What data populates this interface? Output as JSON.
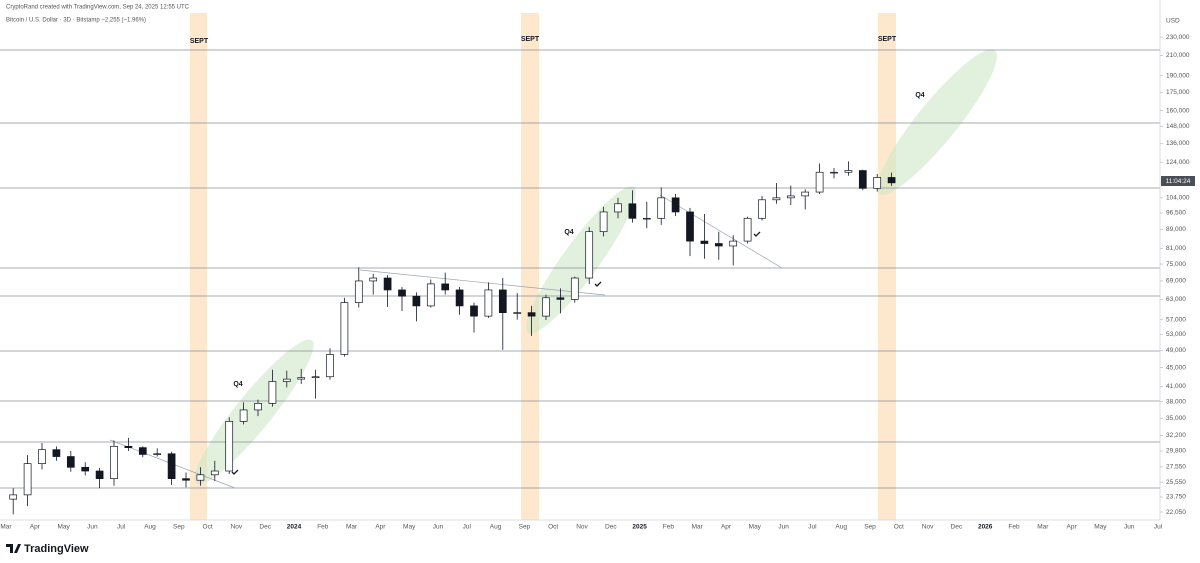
{
  "header": {
    "credit": "CryptoRand created with TradingView.com, Sep 24, 2025 12:55 UTC",
    "symbol": "Bitcoin / U.S. Dollar · 3D · Bitstamp  −2,255 (−1.96%)"
  },
  "footer": {
    "brand": "TradingView"
  },
  "annotations": {
    "sept": [
      "SEPT",
      "SEPT",
      "SEPT"
    ],
    "q4": [
      "Q4",
      "Q4",
      "Q4"
    ]
  },
  "chart_data": {
    "type": "candlestick",
    "currency": "USD",
    "countdown": "11:04:24",
    "log_scale": true,
    "up_color": "#ffffff",
    "down_color": "#131722",
    "outline_color": "#131722",
    "categories": [
      "Mar",
      null,
      "Apr",
      null,
      "May",
      null,
      "Jun",
      null,
      "Jul",
      null,
      "Aug",
      null,
      "Sep",
      null,
      "Oct",
      null,
      "Nov",
      null,
      "Dec",
      null,
      "2024",
      null,
      "Feb",
      null,
      "Mar",
      null,
      "Apr",
      null,
      "May",
      null,
      "Jun",
      null,
      "Jul",
      null,
      "Aug",
      null,
      "Sep",
      null,
      "Oct",
      null,
      "Nov",
      null,
      "Dec",
      null,
      "2025",
      null,
      "Feb",
      null,
      "Mar",
      null,
      "Apr",
      null,
      "May",
      null,
      "Jun",
      null,
      "Jul",
      null,
      "Aug",
      null,
      "Sep",
      null,
      "Oct",
      null,
      "Nov",
      null,
      "Dec",
      null,
      "2026",
      null,
      "Feb",
      null,
      "Mar",
      null,
      "Apr",
      null,
      "May",
      null,
      "Jun",
      null,
      "Jul",
      null
    ],
    "open": [
      23500,
      24000,
      28000,
      30000,
      29000,
      27500,
      27000,
      26000,
      30500,
      30300,
      29300,
      29400,
      26000,
      25800,
      26500,
      27000,
      34500,
      36500,
      37700,
      42000,
      42500,
      42800,
      43000,
      48000,
      62000,
      69000,
      70000,
      66000,
      64000,
      61000,
      68000,
      66000,
      61000,
      58000,
      66000,
      59000,
      59000,
      58000,
      63500,
      63000,
      70000,
      88000,
      97000,
      101000,
      94000,
      94000,
      104000,
      97000,
      84000,
      83000,
      82000,
      84000,
      94000,
      103000,
      104000,
      105000,
      107000,
      118000,
      118000,
      119000,
      109000,
      115000,
      null,
      null,
      null,
      null,
      null,
      null,
      null,
      null,
      null,
      null,
      null,
      null,
      null,
      null,
      null,
      null,
      null,
      null,
      null,
      null
    ],
    "high": [
      24800,
      29200,
      31000,
      30500,
      29800,
      28200,
      27400,
      31400,
      31800,
      30500,
      30200,
      29700,
      26800,
      27500,
      28400,
      35200,
      37900,
      38400,
      44500,
      44300,
      44700,
      44500,
      49500,
      63500,
      73800,
      71500,
      71000,
      67000,
      65200,
      69500,
      71900,
      67000,
      62000,
      68500,
      70000,
      65000,
      61000,
      64500,
      66500,
      70500,
      90000,
      99500,
      104000,
      108000,
      102000,
      109500,
      106000,
      99000,
      96000,
      88000,
      86500,
      94800,
      105000,
      111900,
      110500,
      108500,
      123200,
      120500,
      124500,
      119500,
      117000,
      117800,
      null,
      null,
      null,
      null,
      null,
      null,
      null,
      null,
      null,
      null,
      null,
      null,
      null,
      null,
      null,
      null,
      null,
      null,
      null,
      null
    ],
    "low": [
      21800,
      22700,
      27200,
      28400,
      26900,
      26400,
      24800,
      25100,
      29800,
      28900,
      29000,
      25200,
      24900,
      25100,
      25700,
      26600,
      34000,
      35400,
      37100,
      40800,
      41500,
      38600,
      42400,
      47500,
      60500,
      64500,
      60700,
      59500,
      56500,
      60500,
      64500,
      58400,
      53500,
      57500,
      49100,
      57000,
      52600,
      56900,
      58800,
      62000,
      68000,
      86000,
      94000,
      92000,
      89500,
      91000,
      95000,
      78000,
      77000,
      76600,
      74500,
      83000,
      93000,
      101000,
      100400,
      98200,
      106000,
      114500,
      116000,
      108000,
      107300,
      110300,
      null,
      null,
      null,
      null,
      null,
      null,
      null,
      null,
      null,
      null,
      null,
      null,
      null,
      null,
      null,
      null,
      null,
      null,
      null,
      null
    ],
    "close": [
      24000,
      28000,
      30000,
      29000,
      27500,
      27000,
      26000,
      30500,
      30300,
      29300,
      29400,
      26000,
      25800,
      26500,
      27000,
      34500,
      36500,
      37700,
      42000,
      42500,
      42800,
      43000,
      48000,
      62000,
      69000,
      70000,
      66000,
      64000,
      61000,
      68000,
      66000,
      61000,
      58000,
      66000,
      59000,
      59000,
      58000,
      63500,
      63000,
      70000,
      88000,
      97000,
      101000,
      94000,
      94000,
      104000,
      97000,
      84000,
      83000,
      82000,
      84000,
      94000,
      103000,
      104000,
      105000,
      107000,
      118000,
      118000,
      119000,
      109000,
      115000,
      112000,
      null,
      null,
      null,
      null,
      null,
      null,
      null,
      null,
      null,
      null,
      null,
      null,
      null,
      null,
      null,
      null,
      null,
      null,
      null,
      null
    ],
    "ylim": [
      21200,
      259000
    ],
    "yticks": [
      {
        "value": 22050,
        "label": "22,050"
      },
      {
        "value": 23750,
        "label": "23,750"
      },
      {
        "value": 25550,
        "label": "25,550"
      },
      {
        "value": 27550,
        "label": "27,550"
      },
      {
        "value": 29800,
        "label": "29,800"
      },
      {
        "value": 32200,
        "label": "32,200"
      },
      {
        "value": 35000,
        "label": "35,000"
      },
      {
        "value": 38000,
        "label": "38,000"
      },
      {
        "value": 41000,
        "label": "41,000"
      },
      {
        "value": 45000,
        "label": "45,000"
      },
      {
        "value": 49000,
        "label": "49,000"
      },
      {
        "value": 53000,
        "label": "53,000"
      },
      {
        "value": 57000,
        "label": "57,000"
      },
      {
        "value": 63000,
        "label": "63,000"
      },
      {
        "value": 69000,
        "label": "69,000"
      },
      {
        "value": 75000,
        "label": "75,000"
      },
      {
        "value": 81000,
        "label": "81,000"
      },
      {
        "value": 89000,
        "label": "89,000"
      },
      {
        "value": 96500,
        "label": "96,500"
      },
      {
        "value": 104000,
        "label": "104,000"
      },
      {
        "value": 124000,
        "label": "124,000"
      },
      {
        "value": 136000,
        "label": "136,000"
      },
      {
        "value": 148000,
        "label": "148,000"
      },
      {
        "value": 160000,
        "label": "160,000"
      },
      {
        "value": 175000,
        "label": "175,000"
      },
      {
        "value": 190000,
        "label": "190,000"
      },
      {
        "value": 210000,
        "label": "210,000"
      },
      {
        "value": 230000,
        "label": "230,000"
      }
    ]
  }
}
